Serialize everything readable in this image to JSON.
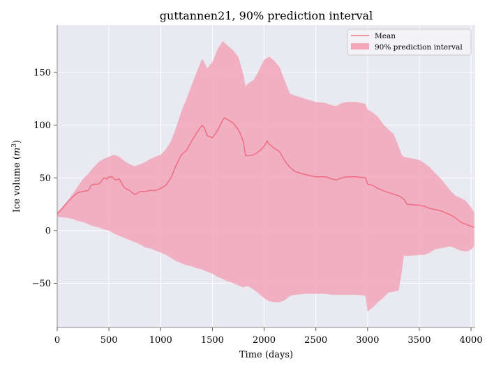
{
  "chart_data": {
    "type": "area",
    "title": "guttannen21, 90% prediction interval",
    "xlabel": "Time (days)",
    "ylabel_prefix": "Ice volume (",
    "ylabel_var": "m",
    "ylabel_exp": "3",
    "ylabel_suffix": ")",
    "xlim": [
      0,
      4040
    ],
    "ylim": [
      -92,
      195
    ],
    "xticks": [
      0,
      500,
      1000,
      1500,
      2000,
      2500,
      3000,
      3500,
      4000
    ],
    "xtick_labels": [
      "0",
      "500",
      "1000",
      "1500",
      "2000",
      "2500",
      "3000",
      "3500",
      "4000"
    ],
    "yticks": [
      -50,
      0,
      50,
      100,
      150
    ],
    "ytick_labels": [
      "−50",
      "0",
      "50",
      "100",
      "150"
    ],
    "grid": true,
    "legend_position": "top-right",
    "colors": {
      "plot_background": "#e8e9f1",
      "mean_line": "#f06f86",
      "interval_fill": "#f2a6b8",
      "grid": "#ffffff",
      "spine": "#8c8c8c"
    },
    "series": [
      {
        "name": "Mean",
        "kind": "line",
        "x": [
          0,
          50,
          100,
          150,
          200,
          250,
          300,
          330,
          360,
          400,
          430,
          450,
          480,
          500,
          530,
          560,
          600,
          640,
          660,
          700,
          750,
          800,
          850,
          900,
          950,
          1000,
          1050,
          1100,
          1150,
          1200,
          1250,
          1300,
          1350,
          1400,
          1420,
          1450,
          1500,
          1550,
          1600,
          1620,
          1700,
          1750,
          1770,
          1800,
          1820,
          1850,
          1900,
          1950,
          2000,
          2030,
          2050,
          2100,
          2150,
          2200,
          2250,
          2300,
          2400,
          2500,
          2600,
          2650,
          2700,
          2750,
          2800,
          2900,
          2980,
          3000,
          3050,
          3100,
          3150,
          3200,
          3300,
          3350,
          3380,
          3500,
          3550,
          3600,
          3650,
          3700,
          3750,
          3800,
          3850,
          3900,
          3950,
          4000,
          4030
        ],
        "y": [
          16,
          21,
          27,
          32,
          36,
          37,
          38,
          43,
          44,
          44,
          47,
          50,
          49,
          51,
          51,
          48,
          49,
          42,
          40,
          38,
          34,
          37,
          37,
          38,
          38,
          40,
          43,
          50,
          62,
          72,
          76,
          85,
          93,
          100,
          98,
          90,
          88,
          95,
          105,
          107,
          102,
          96,
          92,
          84,
          71,
          71,
          72,
          75,
          80,
          85,
          82,
          78,
          75,
          66,
          60,
          56,
          53,
          51,
          51,
          49,
          48,
          50,
          51,
          51,
          50,
          44,
          43,
          40,
          38,
          36,
          33,
          30,
          25,
          24,
          23,
          21,
          20,
          19,
          17,
          15,
          12,
          8,
          6,
          4,
          3
        ]
      },
      {
        "name": "90% prediction interval",
        "kind": "band",
        "x": [
          0,
          100,
          150,
          200,
          250,
          300,
          350,
          400,
          450,
          500,
          550,
          600,
          650,
          700,
          750,
          800,
          850,
          900,
          950,
          1000,
          1050,
          1100,
          1150,
          1200,
          1250,
          1300,
          1350,
          1400,
          1420,
          1450,
          1500,
          1550,
          1600,
          1620,
          1700,
          1750,
          1800,
          1820,
          1850,
          1900,
          1950,
          2000,
          2050,
          2100,
          2150,
          2200,
          2250,
          2300,
          2400,
          2500,
          2600,
          2650,
          2700,
          2750,
          2800,
          2900,
          2980,
          3000,
          3050,
          3100,
          3150,
          3200,
          3250,
          3300,
          3330,
          3350,
          3400,
          3500,
          3550,
          3600,
          3650,
          3700,
          3750,
          3800,
          3850,
          3900,
          3950,
          4000,
          4030
        ],
        "lower": [
          13,
          12,
          11,
          9,
          8,
          6,
          4,
          3,
          1,
          0,
          -3,
          -5,
          -7,
          -9,
          -11,
          -13,
          -16,
          -17,
          -19,
          -21,
          -23,
          -26,
          -29,
          -31,
          -33,
          -34,
          -36,
          -37,
          -38,
          -39,
          -41,
          -44,
          -46,
          -47,
          -50,
          -52,
          -54,
          -53,
          -53,
          -56,
          -60,
          -64,
          -67,
          -68,
          -68,
          -66,
          -62,
          -61,
          -60,
          -60,
          -60,
          -61,
          -61,
          -61,
          -61,
          -61,
          -62,
          -77,
          -73,
          -68,
          -64,
          -59,
          -58,
          -57,
          -40,
          -24,
          -24,
          -23,
          -23,
          -21,
          -18,
          -17,
          -16,
          -15,
          -17,
          -19,
          -20,
          -18,
          -15
        ],
        "upper": [
          17,
          28,
          35,
          42,
          49,
          54,
          60,
          65,
          68,
          70,
          72,
          70,
          66,
          63,
          61,
          63,
          65,
          68,
          70,
          72,
          77,
          85,
          98,
          113,
          125,
          138,
          151,
          163,
          160,
          154,
          160,
          172,
          180,
          178,
          171,
          165,
          148,
          137,
          140,
          143,
          152,
          162,
          165,
          161,
          155,
          142,
          130,
          128,
          125,
          122,
          121,
          119,
          118,
          121,
          122,
          122,
          120,
          115,
          112,
          108,
          101,
          96,
          92,
          80,
          72,
          70,
          69,
          67,
          64,
          60,
          55,
          50,
          44,
          38,
          33,
          31,
          28,
          22,
          17
        ]
      }
    ]
  }
}
